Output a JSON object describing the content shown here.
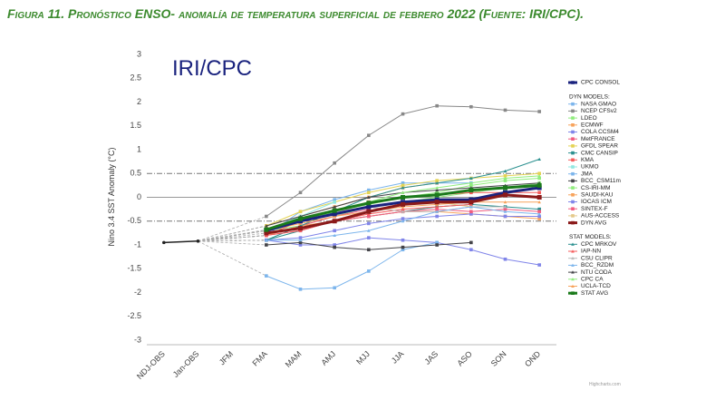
{
  "chart_data": {
    "type": "line",
    "title": "Figura 11. Pronóstico ENSO- anomalía de temperatura superficial de febrero  2022 (Fuente: IRI/CPC).",
    "watermark": "IRI/CPC",
    "credit": "Highcharts.com",
    "y_label": "Nino 3.4 SST Anomaly (°C)",
    "categories": [
      "NDJ-OBS",
      "Jan-OBS",
      "JFM",
      "FMA",
      "MAM",
      "AMJ",
      "MJJ",
      "JJA",
      "JAS",
      "ASO",
      "SON",
      "OND"
    ],
    "ylim": [
      -3,
      3
    ],
    "yticks": [
      -3,
      -2.5,
      -2,
      -1.5,
      -1,
      -0.5,
      0,
      0.5,
      1,
      1.5,
      2,
      2.5,
      3
    ],
    "zero_line": 0,
    "reference_lines": [
      0.5,
      -0.5
    ],
    "legend_headings": [
      "DYN MODELS:",
      "STAT MODELS:"
    ],
    "series": [
      {
        "color": "#222222",
        "marker": "circle",
        "width": 1.5,
        "values": [
          -0.95,
          -0.92,
          null,
          null,
          null,
          null,
          null,
          null,
          null,
          null,
          null,
          null
        ]
      },
      {
        "name": "CPC CONSOL",
        "color": "#1a237e",
        "marker": "square",
        "width": 3,
        "values": [
          null,
          null,
          null,
          -0.7,
          -0.5,
          -0.35,
          -0.2,
          -0.1,
          -0.05,
          -0.05,
          0.1,
          0.2
        ]
      },
      {
        "name": "NASA GMAO",
        "color": "#7cb5ec",
        "marker": "square",
        "width": 1,
        "values": [
          null,
          null,
          null,
          -0.8,
          -0.3,
          -0.05,
          0.15,
          0.3,
          0.3,
          0.3,
          null,
          null
        ]
      },
      {
        "name": "NCEP CFSv2",
        "color": "#888888",
        "marker": "square",
        "width": 1,
        "values": [
          null,
          null,
          null,
          -0.4,
          0.1,
          0.72,
          1.3,
          1.75,
          1.92,
          1.9,
          1.83,
          1.8
        ]
      },
      {
        "name": "LDEO",
        "color": "#90ed7d",
        "marker": "square",
        "width": 1,
        "values": [
          null,
          null,
          null,
          -0.7,
          -0.6,
          -0.4,
          -0.2,
          -0.1,
          0.0,
          0.1,
          0.2,
          0.3
        ]
      },
      {
        "name": "ECMWF",
        "color": "#f7a35c",
        "marker": "square",
        "width": 1,
        "values": [
          null,
          null,
          null,
          -0.6,
          -0.4,
          -0.2,
          0.0,
          0.2,
          0.3,
          null,
          null,
          null
        ]
      },
      {
        "name": "COLA CCSM4",
        "color": "#8085e9",
        "marker": "square",
        "width": 1,
        "values": [
          null,
          null,
          null,
          -0.9,
          -1.0,
          -1.0,
          -0.85,
          -0.9,
          -0.95,
          -1.1,
          -1.3,
          -1.42
        ]
      },
      {
        "name": "MetFRANCE",
        "color": "#f15c80",
        "marker": "square",
        "width": 1,
        "values": [
          null,
          null,
          null,
          -0.8,
          -0.6,
          -0.4,
          -0.25,
          null,
          null,
          null,
          null,
          null
        ]
      },
      {
        "name": "GFDL SPEAR",
        "color": "#e4d354",
        "marker": "square",
        "width": 1,
        "values": [
          null,
          null,
          null,
          -0.6,
          -0.3,
          -0.1,
          0.1,
          0.25,
          0.35,
          0.4,
          0.45,
          0.5
        ]
      },
      {
        "name": "CMC CANSIP",
        "color": "#2b908f",
        "marker": "square",
        "width": 1,
        "values": [
          null,
          null,
          null,
          -0.9,
          -0.7,
          -0.5,
          -0.4,
          -0.3,
          -0.2,
          -0.15,
          -0.2,
          -0.25
        ]
      },
      {
        "name": "KMA",
        "color": "#f45b5b",
        "marker": "square",
        "width": 1,
        "values": [
          null,
          null,
          null,
          -0.8,
          -0.5,
          -0.3,
          -0.1,
          0.0,
          0.05,
          0.1,
          0.1,
          0.1
        ]
      },
      {
        "name": "UKMO",
        "color": "#91e8e1",
        "marker": "square",
        "width": 1,
        "values": [
          null,
          null,
          null,
          -0.7,
          -0.4,
          -0.1,
          null,
          null,
          null,
          null,
          null,
          null
        ]
      },
      {
        "name": "JMA",
        "color": "#7cb5ec",
        "marker": "square",
        "width": 1,
        "values": [
          null,
          null,
          null,
          -1.65,
          -1.93,
          -1.9,
          -1.55,
          -1.1,
          -0.95,
          null,
          null,
          null
        ]
      },
      {
        "name": "BCC_CSM11m",
        "color": "#434348",
        "marker": "square",
        "width": 1,
        "values": [
          null,
          null,
          null,
          -1.0,
          -0.95,
          -1.05,
          -1.1,
          -1.05,
          -1.0,
          -0.95,
          null,
          null
        ]
      },
      {
        "name": "CS-IRI-MM",
        "color": "#90ed7d",
        "marker": "square",
        "width": 1,
        "values": [
          null,
          null,
          null,
          -0.7,
          -0.5,
          -0.3,
          -0.15,
          0.0,
          0.1,
          0.25,
          0.35,
          0.4
        ]
      },
      {
        "name": "SAUDI-KAU",
        "color": "#f7a35c",
        "marker": "square",
        "width": 1,
        "values": [
          null,
          null,
          null,
          -0.8,
          -0.6,
          -0.5,
          -0.4,
          -0.3,
          -0.3,
          -0.35,
          -0.4,
          -0.45
        ]
      },
      {
        "name": "IOCAS ICM",
        "color": "#8085e9",
        "marker": "square",
        "width": 1,
        "values": [
          null,
          null,
          null,
          -0.9,
          -0.85,
          -0.7,
          -0.55,
          -0.45,
          -0.4,
          -0.35,
          -0.4,
          -0.4
        ]
      },
      {
        "name": "SINTEX-F",
        "color": "#f15c80",
        "marker": "square",
        "width": 1,
        "values": [
          null,
          null,
          null,
          -0.8,
          -0.7,
          -0.5,
          -0.4,
          -0.3,
          -0.25,
          -0.3,
          -0.25,
          -0.3
        ]
      },
      {
        "name": "AUS-ACCESS",
        "color": "#e4c98a",
        "marker": "square",
        "width": 1,
        "values": [
          null,
          null,
          null,
          -0.7,
          -0.5,
          -0.3,
          -0.2,
          -0.1,
          -0.1,
          -0.2,
          null,
          null
        ]
      },
      {
        "name": "DYN AVG",
        "color": "#8b1a1a",
        "marker": "square",
        "width": 3,
        "values": [
          null,
          null,
          null,
          -0.75,
          -0.65,
          -0.5,
          -0.3,
          -0.15,
          -0.1,
          -0.1,
          0.05,
          0.0
        ]
      },
      {
        "name": "CPC MRKOV",
        "color": "#2b908f",
        "marker": "triangle",
        "width": 1,
        "values": [
          null,
          null,
          null,
          -0.9,
          -0.6,
          -0.3,
          0.0,
          0.2,
          0.3,
          0.4,
          0.55,
          0.8
        ]
      },
      {
        "name": "IAP-NN",
        "color": "#f45b5b",
        "marker": "triangle",
        "width": 1,
        "values": [
          null,
          null,
          null,
          -0.8,
          -0.7,
          -0.5,
          -0.35,
          -0.25,
          -0.2,
          -0.15,
          null,
          null
        ]
      },
      {
        "name": "CSU CLIPR",
        "color": "#bbbbbb",
        "marker": "triangle",
        "width": 1,
        "values": [
          null,
          null,
          null,
          -0.7,
          -0.5,
          -0.3,
          -0.2,
          -0.3,
          -0.3,
          -0.2,
          -0.2,
          null
        ]
      },
      {
        "name": "BCC_RZDM",
        "color": "#7cb5ec",
        "marker": "triangle",
        "width": 1,
        "values": [
          null,
          null,
          null,
          -0.9,
          -0.9,
          -0.8,
          -0.7,
          -0.5,
          -0.3,
          -0.2,
          -0.3,
          -0.35
        ]
      },
      {
        "name": "NTU CODA",
        "color": "#434348",
        "marker": "triangle",
        "width": 1,
        "values": [
          null,
          null,
          null,
          -0.6,
          -0.4,
          -0.2,
          0.0,
          0.1,
          0.15,
          0.2,
          0.25,
          0.3
        ]
      },
      {
        "name": "CPC CA",
        "color": "#90ed7d",
        "marker": "triangle",
        "width": 1,
        "values": [
          null,
          null,
          null,
          -0.7,
          -0.5,
          -0.3,
          -0.1,
          0.1,
          0.2,
          0.3,
          0.4,
          0.45
        ]
      },
      {
        "name": "UCLA-TCD",
        "color": "#f7a35c",
        "marker": "triangle",
        "width": 1,
        "values": [
          null,
          null,
          null,
          -0.7,
          -0.55,
          -0.4,
          -0.3,
          -0.2,
          -0.15,
          -0.1,
          -0.1,
          -0.1
        ]
      },
      {
        "name": "STAT AVG",
        "color": "#1b7a1b",
        "marker": "square",
        "width": 3,
        "values": [
          null,
          null,
          null,
          -0.68,
          -0.45,
          -0.28,
          -0.12,
          0.0,
          0.05,
          0.15,
          0.2,
          0.25
        ]
      }
    ]
  }
}
